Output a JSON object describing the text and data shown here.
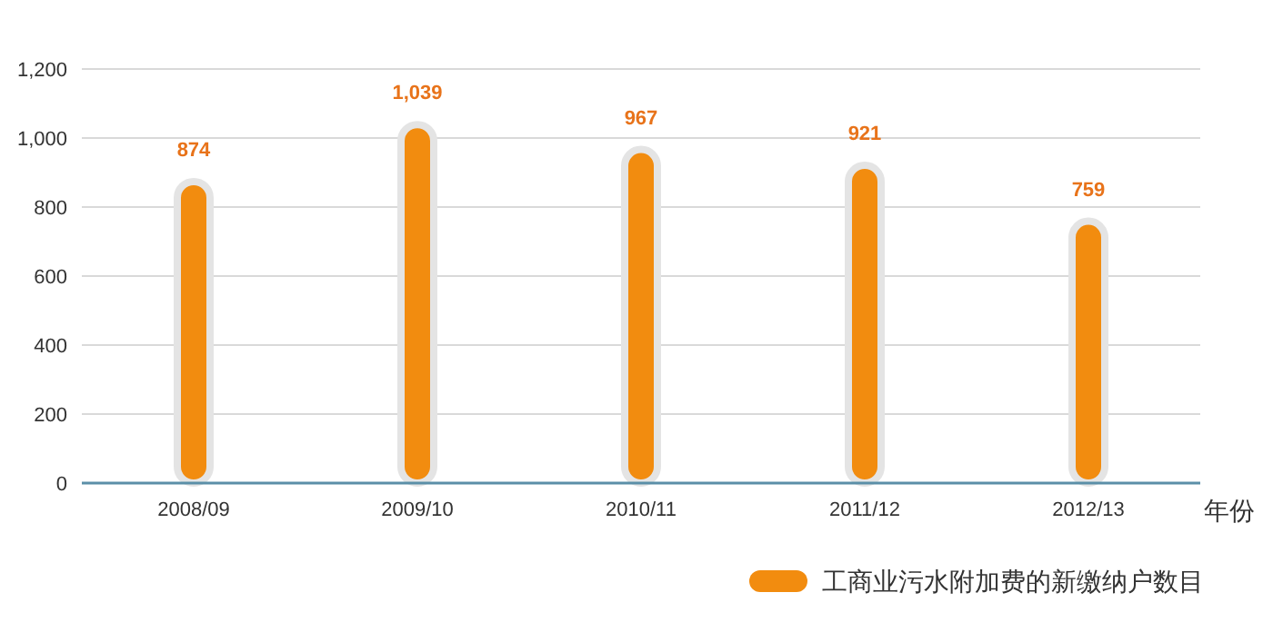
{
  "chart_data": {
    "type": "bar",
    "categories": [
      "2008/09",
      "2009/10",
      "2010/11",
      "2011/12",
      "2012/13"
    ],
    "series": [
      {
        "name": "工商业污水附加费的新缴纳户数目",
        "color": "#f28c0f",
        "values": [
          874,
          1039,
          967,
          921,
          759
        ],
        "value_labels": [
          "874",
          "1,039",
          "967",
          "921",
          "759"
        ]
      }
    ],
    "xlabel": "年份",
    "ylim": [
      0,
      1200
    ],
    "yticks": [
      0,
      200,
      400,
      600,
      800,
      {
        "value": 1000,
        "label": "1,000"
      },
      {
        "value": 1200,
        "label": "1,200"
      }
    ],
    "grid": "y",
    "legend": "bottom right"
  }
}
